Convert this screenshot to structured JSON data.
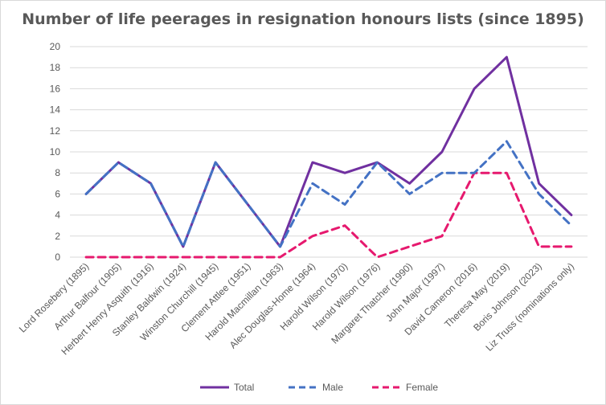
{
  "chart_data": {
    "type": "line",
    "title": "Number of life peerages in resignation honours lists (since 1895)",
    "xlabel": "",
    "ylabel": "",
    "ylim": [
      0,
      20
    ],
    "yticks": [
      0,
      2,
      4,
      6,
      8,
      10,
      12,
      14,
      16,
      18,
      20
    ],
    "grid": true,
    "legend_position": "bottom",
    "categories": [
      "Lord Rosebery (1895)",
      "Arthur Balfour (1905)",
      "Herbert Henry Asquith (1916)",
      "Stanley Baldwin (1924)",
      "Winston Churchill (1945)",
      "Clement Attlee (1951)",
      "Harold Macmillan (1963)",
      "Alec Douglas-Home (1964)",
      "Harold Wilson (1970)",
      "Harold Wilson (1976)",
      "Margaret Thatcher (1990)",
      "John Major (1997)",
      "David Cameron (2016)",
      "Theresa May (2019)",
      "Boris Johnson (2023)",
      "Liz Truss (nominations only)"
    ],
    "series": [
      {
        "name": "Total",
        "color": "#7030a0",
        "style": "solid",
        "values": [
          6,
          9,
          7,
          1,
          9,
          5,
          1,
          9,
          8,
          9,
          7,
          10,
          16,
          19,
          7,
          4
        ]
      },
      {
        "name": "Male",
        "color": "#4472c4",
        "style": "dashed",
        "values": [
          6,
          9,
          7,
          1,
          9,
          5,
          1,
          7,
          5,
          9,
          6,
          8,
          8,
          11,
          6,
          3
        ]
      },
      {
        "name": "Female",
        "color": "#e6196e",
        "style": "dashed",
        "values": [
          0,
          0,
          0,
          0,
          0,
          0,
          0,
          2,
          3,
          0,
          1,
          2,
          8,
          8,
          1,
          1
        ]
      }
    ]
  }
}
